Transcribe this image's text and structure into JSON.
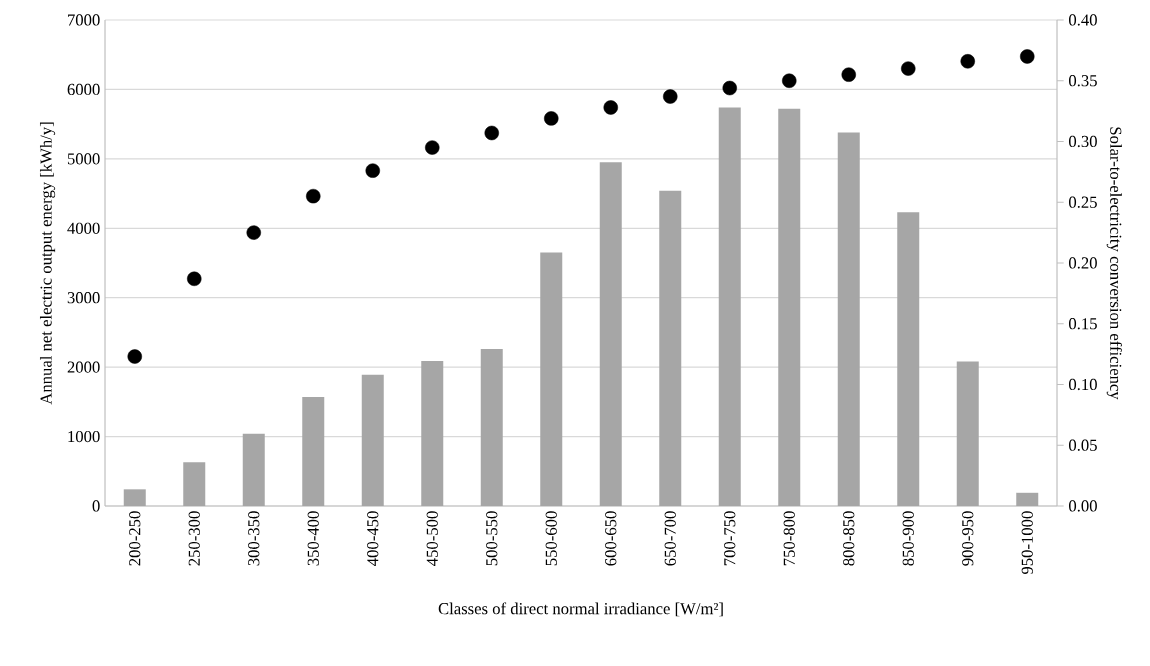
{
  "chart_data": {
    "type": "bar",
    "xlabel": "Classes of direct normal irradiance [W/m²]",
    "ylabel": "Annual net electric output energy [kWh/y]",
    "y2label": "Solar-to-electricity conversion efficiency",
    "categories": [
      "200-250",
      "250-300",
      "300-350",
      "350-400",
      "400-450",
      "450-500",
      "500-550",
      "550-600",
      "600-650",
      "650-700",
      "700-750",
      "750-800",
      "800-850",
      "850-900",
      "900-950",
      "950-1000"
    ],
    "series": [
      {
        "color": "#a6a6a6",
        "values": [
          240,
          630,
          1040,
          1570,
          1890,
          2090,
          2260,
          3650,
          4950,
          4540,
          5740,
          5720,
          5380,
          4230,
          2080,
          190
        ]
      },
      {
        "type": "scatter",
        "axis": "y2",
        "color": "#000000",
        "marker": "circle",
        "values": [
          0.123,
          0.187,
          0.225,
          0.255,
          0.276,
          0.295,
          0.307,
          0.319,
          0.328,
          0.337,
          0.344,
          0.35,
          0.355,
          0.36,
          0.366,
          0.37
        ]
      }
    ],
    "ylim": [
      0,
      7000
    ],
    "yticks": [
      0,
      1000,
      2000,
      3000,
      4000,
      5000,
      6000,
      7000
    ],
    "y2lim": [
      0,
      0.4
    ],
    "y2ticks": [
      {
        "value": 0,
        "label": "0.00"
      },
      {
        "value": 0.05,
        "label": "0.05"
      },
      {
        "value": 0.1,
        "label": "0.10"
      },
      {
        "value": 0.15,
        "label": "0.15"
      },
      {
        "value": 0.2,
        "label": "0.20"
      },
      {
        "value": 0.25,
        "label": "0.25"
      },
      {
        "value": 0.3,
        "label": "0.30"
      },
      {
        "value": 0.35,
        "label": "0.35"
      },
      {
        "value": 0.4,
        "label": "0.40"
      }
    ],
    "grid": "y"
  }
}
